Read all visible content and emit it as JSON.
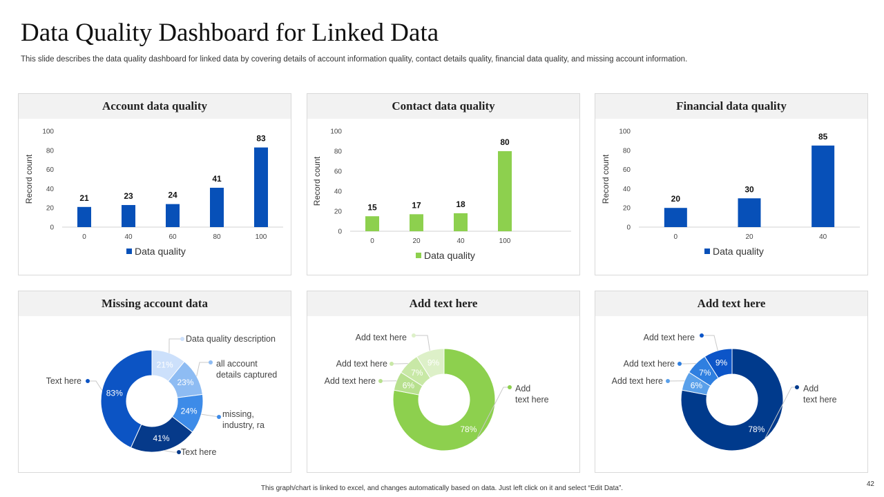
{
  "slide": {
    "title": "Data Quality Dashboard for Linked Data",
    "subtitle": "This slide describes the data quality dashboard for linked data by covering details of account information quality, contact details quality, financial data quality, and missing account information.",
    "footer": "This graph/chart is linked to excel, and changes automatically based on data. Just left click on it and select “Edit Data”.",
    "page_number": "42"
  },
  "colors": {
    "blue": "#0750b8",
    "green": "#8dd04e",
    "navy": "#003a8c"
  },
  "chart_data": [
    {
      "id": "account",
      "type": "bar",
      "title": "Account data quality",
      "categories": [
        "0",
        "40",
        "60",
        "80",
        "100"
      ],
      "series": [
        {
          "name": "Data quality",
          "values": [
            21,
            23,
            24,
            41,
            83
          ]
        }
      ],
      "ylabel": "Record count",
      "ylim": [
        0,
        100
      ],
      "yticks": [
        0,
        20,
        40,
        60,
        80,
        100
      ],
      "color": "#0750b8",
      "legend": "bottom"
    },
    {
      "id": "contact",
      "type": "bar",
      "title": "Contact data quality",
      "categories": [
        "0",
        "20",
        "40",
        "100"
      ],
      "series": [
        {
          "name": "Data quality",
          "values": [
            15,
            17,
            18,
            80
          ]
        }
      ],
      "ylabel": "Record count",
      "ylim": [
        0,
        100
      ],
      "yticks": [
        0,
        20,
        40,
        60,
        80,
        100
      ],
      "color": "#8dd04e",
      "legend": "bottom"
    },
    {
      "id": "financial",
      "type": "bar",
      "title": "Financial data quality",
      "categories": [
        "0",
        "20",
        "40"
      ],
      "series": [
        {
          "name": "Data quality",
          "values": [
            20,
            30,
            85
          ]
        }
      ],
      "ylabel": "Record count",
      "ylim": [
        0,
        100
      ],
      "yticks": [
        0,
        20,
        40,
        60,
        80,
        100
      ],
      "color": "#0750b8",
      "legend": "bottom"
    },
    {
      "id": "missing",
      "type": "pie",
      "title": "Missing account data",
      "slices": [
        {
          "label": "Data quality description",
          "value": 21,
          "display": "21%",
          "color": "#cce0fb"
        },
        {
          "label": "all account details captured",
          "value": 23,
          "display": "23%",
          "color": "#8ebcf3"
        },
        {
          "label": "missing, industry, ra",
          "value": 24,
          "display": "24%",
          "color": "#3d8be8"
        },
        {
          "label": "Text here",
          "value": 41,
          "display": "41%",
          "color": "#063a8a"
        },
        {
          "label": "Text here",
          "value": 83,
          "display": "83%",
          "color": "#0c54c4"
        }
      ]
    },
    {
      "id": "green-donut",
      "type": "pie",
      "title": "Add text here",
      "slices": [
        {
          "label": "Add text here",
          "value": 78,
          "display": "78%",
          "color": "#8dd04e"
        },
        {
          "label": "Add text here",
          "value": 6,
          "display": "6%",
          "color": "#b7e08e"
        },
        {
          "label": "Add text here",
          "value": 7,
          "display": "7%",
          "color": "#c8e8a6"
        },
        {
          "label": "Add text here",
          "value": 9,
          "display": "9%",
          "color": "#ddf0c8"
        }
      ]
    },
    {
      "id": "blue-donut",
      "type": "pie",
      "title": "Add text here",
      "slices": [
        {
          "label": "Add text here",
          "value": 78,
          "display": "78%",
          "color": "#003a8c"
        },
        {
          "label": "Add text here",
          "value": 6,
          "display": "6%",
          "color": "#5aa0ea"
        },
        {
          "label": "Add text here",
          "value": 7,
          "display": "7%",
          "color": "#2f7fe0"
        },
        {
          "label": "Add text here",
          "value": 9,
          "display": "9%",
          "color": "#0c55c8"
        }
      ]
    }
  ]
}
